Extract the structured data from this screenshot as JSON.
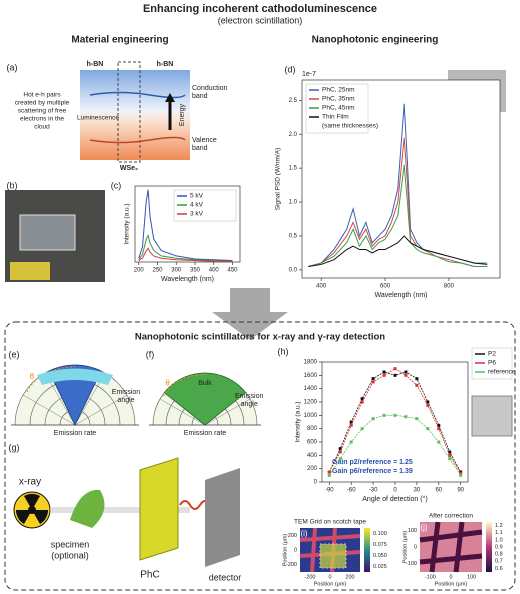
{
  "title": "Enhancing incoherent cathodoluminescence",
  "subtitle": "(electron scintillation)",
  "headers": [
    "Material engineering",
    "Nanophotonic engineering"
  ],
  "panel_a": {
    "label": "(a)",
    "top_left": "h-BN",
    "top_right": "h-BN",
    "conduction": [
      "Conduction",
      "band"
    ],
    "luminescence": "Luminescence",
    "energy": "Energy",
    "valence": [
      "Valence",
      "band"
    ],
    "material": "WSe₂",
    "note": [
      "Hot e-h pairs",
      "created by multiple",
      "scattering of free",
      "electrons in the",
      "cloud"
    ]
  },
  "panel_b": {
    "label": "(b)"
  },
  "panel_c": {
    "label": "(c)",
    "chart_data": {
      "type": "line",
      "xlabel": "Wavelength (nm)",
      "ylabel": "Intensity (a.u.)",
      "x": [
        200,
        210,
        220,
        225,
        230,
        240,
        260,
        300,
        350,
        400,
        450
      ],
      "xlim": [
        190,
        470
      ],
      "xticks": [
        200,
        250,
        300,
        350,
        400,
        450
      ],
      "ylim": [
        0,
        10
      ],
      "legend": "upper right",
      "series": [
        {
          "name": "5 kV",
          "color": "#3b4fb8",
          "values": [
            0.5,
            2,
            8,
            9.5,
            6,
            3,
            1.5,
            0.8,
            0.4,
            0.3,
            0.2
          ]
        },
        {
          "name": "4 kV",
          "color": "#3a9a3a",
          "values": [
            0.3,
            1,
            3,
            3.5,
            2.5,
            1.5,
            0.8,
            0.5,
            0.3,
            0.2,
            0.1
          ]
        },
        {
          "name": "3 kV",
          "color": "#d23a3a",
          "values": [
            0.2,
            0.5,
            1.5,
            1.8,
            1.3,
            0.8,
            0.5,
            0.3,
            0.2,
            0.1,
            0.1
          ]
        }
      ]
    }
  },
  "panel_d": {
    "label": "(d)",
    "chart_data": {
      "type": "line",
      "offset_text": "1e-7",
      "xlabel": "Wavelength (nm)",
      "ylabel": "Signal PSD (W/nm/A)",
      "legend": "upper left",
      "legend_note": "(same thicknesses)",
      "x": [
        360,
        400,
        440,
        480,
        500,
        520,
        540,
        560,
        580,
        600,
        620,
        640,
        660,
        670,
        680,
        700,
        720,
        760,
        800,
        840,
        880,
        920
      ],
      "xlim": [
        340,
        960
      ],
      "xticks": [
        400,
        600,
        800
      ],
      "ylim": [
        -0.12,
        2.8
      ],
      "yticks": [
        {
          "value": 0,
          "label": "0.0"
        },
        {
          "value": 0.5,
          "label": "0.5"
        },
        {
          "value": 1,
          "label": "1.0"
        },
        {
          "value": 1.5,
          "label": "1.5"
        },
        {
          "value": 2,
          "label": "2.0"
        },
        {
          "value": 2.5,
          "label": "2.5"
        }
      ],
      "series": [
        {
          "name": "PhC, 25nm",
          "color": "#3c5fb0",
          "values": [
            0.05,
            0.1,
            0.3,
            0.6,
            0.9,
            0.5,
            0.7,
            0.4,
            0.5,
            0.6,
            0.8,
            1.2,
            2.45,
            1.6,
            0.6,
            0.4,
            0.3,
            0.25,
            0.2,
            0.15,
            0.1,
            0.1
          ]
        },
        {
          "name": "PhC, 35nm",
          "color": "#d04a4a",
          "values": [
            0.05,
            0.1,
            0.25,
            0.5,
            0.7,
            0.45,
            0.6,
            0.35,
            0.45,
            0.5,
            0.7,
            1.0,
            1.95,
            1.3,
            0.5,
            0.35,
            0.3,
            0.2,
            0.15,
            0.1,
            0.05,
            0.05
          ]
        },
        {
          "name": "PhC, 45nm",
          "color": "#3f9a4f",
          "values": [
            0.05,
            0.1,
            0.2,
            0.4,
            0.6,
            0.35,
            0.5,
            0.3,
            0.4,
            0.45,
            0.6,
            0.8,
            1.55,
            1.0,
            0.4,
            0.3,
            0.25,
            0.2,
            0.12,
            0.1,
            0.05,
            0.05
          ]
        },
        {
          "name": "Thin Film",
          "color": "#111111",
          "values": [
            0.05,
            0.08,
            0.15,
            0.3,
            0.35,
            0.3,
            0.3,
            0.25,
            0.3,
            0.3,
            0.35,
            0.4,
            0.5,
            0.45,
            0.4,
            0.35,
            0.3,
            0.25,
            0.2,
            0.15,
            0.1,
            0.08
          ]
        }
      ]
    }
  },
  "box_title": "Nanophotonic scintillators for x-ray and γ-ray detection",
  "panel_e": {
    "label": "(e)",
    "structure": "PhC",
    "theta": "θ",
    "rate": "Emission rate",
    "angle": [
      "Emission",
      "angle"
    ]
  },
  "panel_f": {
    "label": "(f)",
    "structure": "Bulk",
    "theta": "θ",
    "rate": "Emission rate",
    "angle": [
      "Emission",
      "angle"
    ]
  },
  "panel_g": {
    "label": "(g)",
    "source": "x-ray",
    "specimen": [
      "specimen",
      "(optional)"
    ],
    "phc": "PhC",
    "detector": "detector"
  },
  "panel_h": {
    "label": "(h)",
    "chart_data": {
      "type": "line",
      "markers": true,
      "xlabel": "Angle of detection (°)",
      "ylabel": "Intensity (a.u.)",
      "legend": "outside right",
      "x": [
        -90,
        -75,
        -60,
        -45,
        -30,
        -15,
        0,
        15,
        30,
        45,
        60,
        75,
        90
      ],
      "xlim": [
        -100,
        100
      ],
      "xticks": [
        -90,
        -60,
        -30,
        0,
        30,
        60,
        90
      ],
      "ylim": [
        0,
        1800
      ],
      "yticks": [
        0,
        200,
        400,
        600,
        800,
        1000,
        1200,
        1400,
        1600,
        1800
      ],
      "annotations": [
        "Gain p2/reference = 1.25",
        "Gain p6/reference = 1.39"
      ],
      "series": [
        {
          "name": "P2",
          "color": "#111111",
          "values": [
            150,
            500,
            900,
            1250,
            1550,
            1650,
            1600,
            1650,
            1550,
            1200,
            850,
            450,
            150
          ]
        },
        {
          "name": "P6",
          "color": "#e03030",
          "values": [
            150,
            450,
            850,
            1200,
            1500,
            1600,
            1700,
            1600,
            1450,
            1150,
            800,
            400,
            130
          ]
        },
        {
          "name": "reference",
          "color": "#5cc05c",
          "values": [
            100,
            350,
            600,
            800,
            950,
            1000,
            1000,
            980,
            950,
            800,
            600,
            350,
            100
          ]
        }
      ]
    }
  },
  "panel_i": {
    "label": "(i)",
    "title": "TEM Grid on scotch tape",
    "xlabel": "Position (μm)",
    "ylabel": "Position (μm)",
    "xticks": [
      "-200",
      "0",
      "200"
    ],
    "yticks": [
      "200",
      "0",
      "-200"
    ],
    "colorbar": [
      "0.100",
      "0.075",
      "0.050",
      "0.025"
    ]
  },
  "panel_j": {
    "label": "(j)",
    "title": "After correction",
    "xlabel": "Position (μm)",
    "ylabel": "Position (μm)",
    "xticks": [
      "-100",
      "0",
      "100"
    ],
    "yticks": [
      "100",
      "0",
      "-100"
    ],
    "colorbar": [
      "1.2",
      "1.1",
      "1.0",
      "0.9",
      "0.8",
      "0.7",
      "0.6"
    ]
  }
}
